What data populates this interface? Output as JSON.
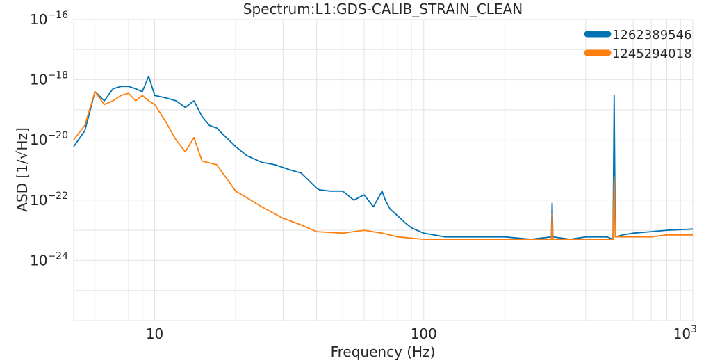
{
  "chart_data": {
    "type": "line",
    "title": "Spectrum:L1:GDS-CALIB_STRAIN_CLEAN",
    "xlabel": "Frequency (Hz)",
    "ylabel": "ASD  [1/√Hz]",
    "xscale": "log",
    "yscale": "log",
    "xlim": [
      5,
      1000
    ],
    "ylim": [
      1e-26,
      1e-16
    ],
    "x_ticks": [
      {
        "value": 10,
        "label": "10"
      },
      {
        "value": 100,
        "label": "100"
      },
      {
        "value": 1000,
        "label": "10",
        "exp": "3"
      }
    ],
    "y_ticks": [
      {
        "value": 1e-16,
        "exp": "−16"
      },
      {
        "value": 1e-18,
        "exp": "−18"
      },
      {
        "value": 1e-20,
        "exp": "−20"
      },
      {
        "value": 1e-22,
        "exp": "−22"
      },
      {
        "value": 1e-24,
        "exp": "−24"
      }
    ],
    "grid": true,
    "legend_position": "top-right",
    "series": [
      {
        "name": "1262389546",
        "color": "#0072b2",
        "x": [
          5,
          5.5,
          6,
          6.5,
          7,
          7.5,
          8,
          8.5,
          9,
          9.5,
          10,
          11,
          12,
          13,
          14,
          15,
          16,
          17,
          18,
          20,
          22,
          25,
          28,
          32,
          35,
          40,
          41,
          45,
          50,
          55,
          60,
          65,
          70,
          72,
          75,
          80,
          85,
          90,
          100,
          120,
          140,
          200,
          250,
          298,
          300,
          302,
          350,
          400,
          480,
          505,
          510,
          515,
          550,
          600,
          700,
          800,
          1000
        ],
        "y": [
          6e-21,
          2e-20,
          4e-19,
          2e-19,
          5e-19,
          6e-19,
          6e-19,
          5e-19,
          4e-19,
          1.3e-18,
          3e-19,
          2.5e-19,
          2e-19,
          1.2e-19,
          2e-19,
          6e-20,
          3e-20,
          2.5e-20,
          1.5e-20,
          6e-21,
          3e-21,
          1.8e-21,
          1.5e-21,
          1e-21,
          8e-22,
          2.5e-22,
          2.2e-22,
          2e-22,
          2e-22,
          1e-22,
          1.5e-22,
          6e-23,
          2e-22,
          1e-22,
          5e-23,
          3e-23,
          1.8e-23,
          1.2e-23,
          8e-24,
          6e-24,
          6e-24,
          6e-24,
          5e-24,
          6e-24,
          8e-23,
          6e-24,
          5e-24,
          6e-24,
          6e-24,
          5e-24,
          3e-19,
          6e-24,
          7e-24,
          8e-24,
          9e-24,
          1e-23,
          1.1e-23
        ]
      },
      {
        "name": "1245294018",
        "color": "#ff7f0e",
        "x": [
          5,
          5.5,
          6,
          6.5,
          7,
          7.5,
          8,
          8.5,
          9,
          9.5,
          10,
          11,
          12,
          13,
          14,
          15,
          17,
          20,
          22,
          25,
          30,
          35,
          40,
          50,
          60,
          70,
          80,
          100,
          150,
          200,
          250,
          298,
          300,
          302,
          400,
          480,
          505,
          510,
          515,
          550,
          600,
          700,
          800,
          1000
        ],
        "y": [
          1e-20,
          3e-20,
          4e-19,
          1.5e-19,
          2e-19,
          3e-19,
          3.5e-19,
          2e-19,
          3e-19,
          2e-19,
          1.5e-19,
          4e-20,
          1e-20,
          4e-21,
          1.2e-20,
          2e-21,
          1.5e-21,
          2e-22,
          1.2e-22,
          6e-23,
          2.5e-23,
          1.5e-23,
          9e-24,
          8e-24,
          1e-23,
          8e-24,
          6e-24,
          5e-24,
          5e-24,
          5e-24,
          5e-24,
          5e-24,
          3.5e-23,
          5e-24,
          5e-24,
          5e-24,
          5e-24,
          6e-22,
          6e-24,
          6e-24,
          6e-24,
          6e-24,
          7e-24,
          7e-24
        ]
      }
    ]
  }
}
